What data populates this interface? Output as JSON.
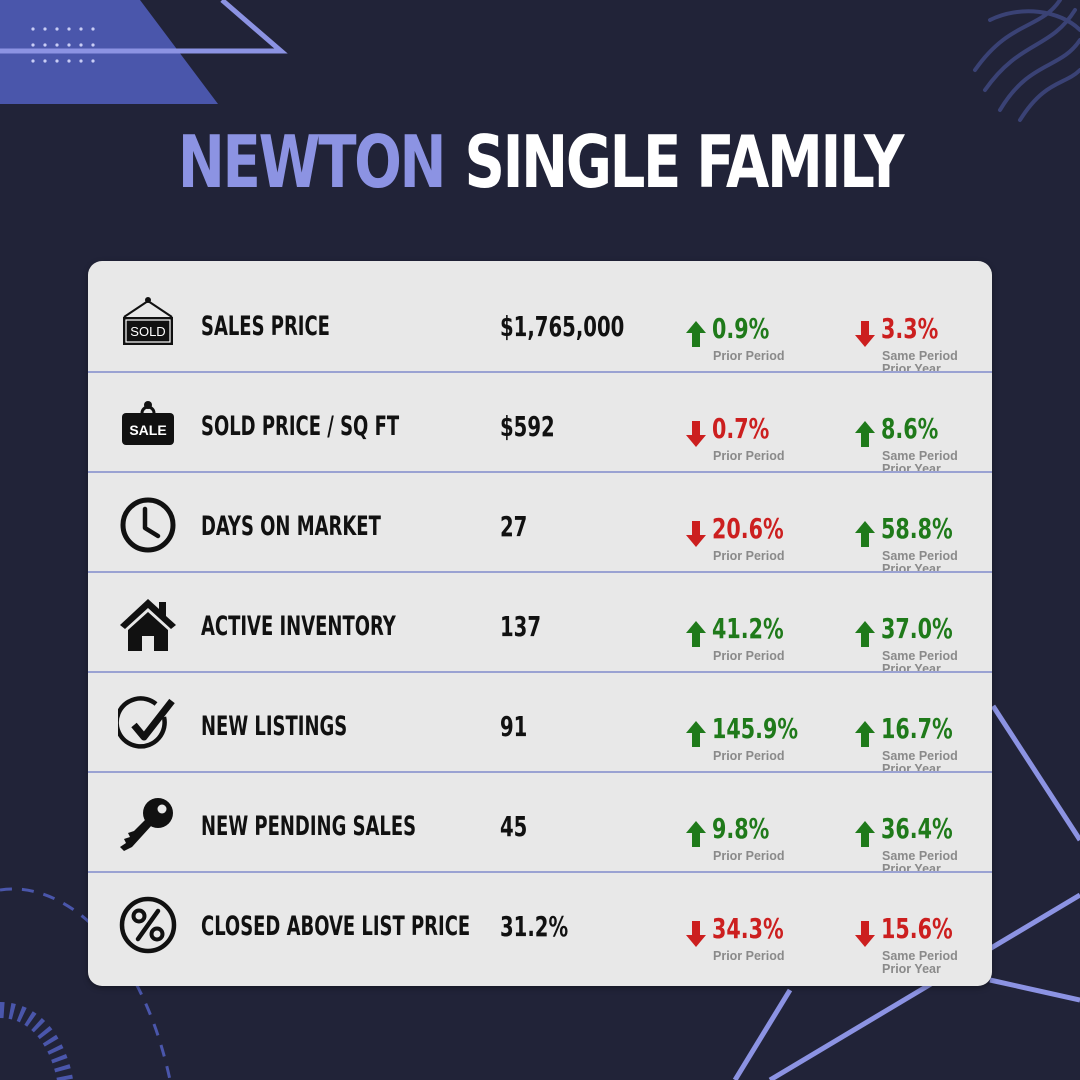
{
  "header": {
    "city": "NEWTON",
    "property_type": "SINGLE FAMILY"
  },
  "colors": {
    "background": "#212338",
    "accent": "#8c93e3",
    "card": "#e8e8e8",
    "up": "#1f7a1a",
    "down": "#cc1f1f"
  },
  "rows": [
    {
      "icon": "sold-sign-icon",
      "label": "SALES PRICE",
      "value": "$1,765,000",
      "prior_period": {
        "direction": "up",
        "change": "0.9%",
        "caption": "Prior Period"
      },
      "prior_year": {
        "direction": "down",
        "change": "3.3%",
        "caption_line1": "Same Period",
        "caption_line2": "Prior Year"
      }
    },
    {
      "icon": "sale-sign-icon",
      "label": "SOLD PRICE / SQ FT",
      "value": "$592",
      "prior_period": {
        "direction": "down",
        "change": "0.7%",
        "caption": "Prior Period"
      },
      "prior_year": {
        "direction": "up",
        "change": "8.6%",
        "caption_line1": "Same Period",
        "caption_line2": "Prior Year"
      }
    },
    {
      "icon": "clock-icon",
      "label": "DAYS ON MARKET",
      "value": "27",
      "prior_period": {
        "direction": "down",
        "change": "20.6%",
        "caption": "Prior Period"
      },
      "prior_year": {
        "direction": "up",
        "change": "58.8%",
        "caption_line1": "Same Period",
        "caption_line2": "Prior Year"
      }
    },
    {
      "icon": "house-icon",
      "label": "ACTIVE INVENTORY",
      "value": "137",
      "prior_period": {
        "direction": "up",
        "change": "41.2%",
        "caption": "Prior Period"
      },
      "prior_year": {
        "direction": "up",
        "change": "37.0%",
        "caption_line1": "Same Period",
        "caption_line2": "Prior Year"
      }
    },
    {
      "icon": "checkmark-circle-icon",
      "label": "NEW LISTINGS",
      "value": "91",
      "prior_period": {
        "direction": "up",
        "change": "145.9%",
        "caption": "Prior Period"
      },
      "prior_year": {
        "direction": "up",
        "change": "16.7%",
        "caption_line1": "Same Period",
        "caption_line2": "Prior Year"
      }
    },
    {
      "icon": "key-icon",
      "label": "NEW PENDING SALES",
      "value": "45",
      "prior_period": {
        "direction": "up",
        "change": "9.8%",
        "caption": "Prior Period"
      },
      "prior_year": {
        "direction": "up",
        "change": "36.4%",
        "caption_line1": "Same Period",
        "caption_line2": "Prior Year"
      }
    },
    {
      "icon": "percent-circle-icon",
      "label": "CLOSED ABOVE LIST PRICE",
      "value": "31.2%",
      "prior_period": {
        "direction": "down",
        "change": "34.3%",
        "caption": "Prior Period"
      },
      "prior_year": {
        "direction": "down",
        "change": "15.6%",
        "caption_line1": "Same Period",
        "caption_line2": "Prior Year"
      }
    }
  ]
}
